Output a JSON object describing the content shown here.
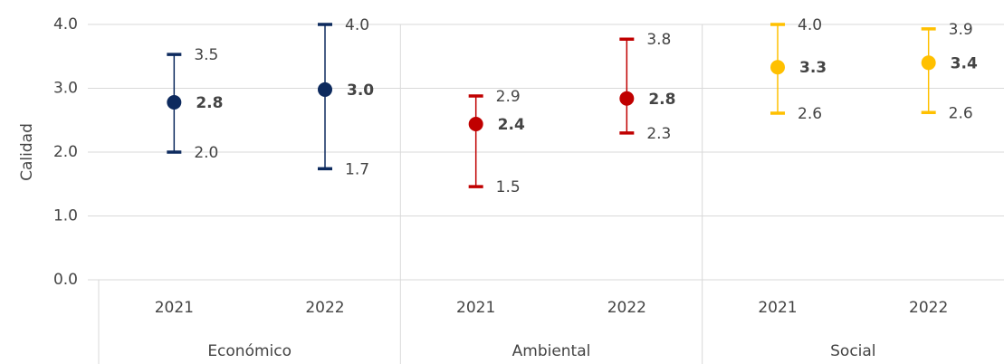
{
  "chart_data": {
    "type": "errorbar",
    "y_label": "Calidad",
    "categories": [
      "2021",
      "2022"
    ],
    "ylim": [
      0,
      4
    ],
    "yticks": [
      {
        "value": 0,
        "label": "0.0"
      },
      {
        "value": 1,
        "label": "1.0"
      },
      {
        "value": 2,
        "label": "2.0"
      },
      {
        "value": 3,
        "label": "3.0"
      },
      {
        "value": 4,
        "label": "4.0"
      }
    ],
    "grid": true,
    "series": [
      {
        "name": "Económico",
        "color": "#0d2a5e",
        "values": [
          2.78,
          2.98
        ],
        "value_labels": [
          "2.8",
          "3.0"
        ],
        "low": [
          2.0,
          1.74
        ],
        "low_labels": [
          "2.0",
          "1.7"
        ],
        "high": [
          3.53,
          4.0
        ],
        "high_labels": [
          "3.5",
          "4.0"
        ]
      },
      {
        "name": "Ambiental",
        "color": "#c00000",
        "values": [
          2.44,
          2.84
        ],
        "value_labels": [
          "2.4",
          "2.8"
        ],
        "low": [
          1.46,
          2.3
        ],
        "low_labels": [
          "1.5",
          "2.3"
        ],
        "high": [
          2.88,
          3.77
        ],
        "high_labels": [
          "2.9",
          "3.8"
        ]
      },
      {
        "name": "Social",
        "color": "#ffc000",
        "values": [
          3.33,
          3.4
        ],
        "value_labels": [
          "3.3",
          "3.4"
        ],
        "low": [
          2.61,
          2.62
        ],
        "low_labels": [
          "2.6",
          "2.6"
        ],
        "high": [
          4.0,
          3.93
        ],
        "high_labels": [
          "4.0",
          "3.9"
        ]
      }
    ]
  }
}
